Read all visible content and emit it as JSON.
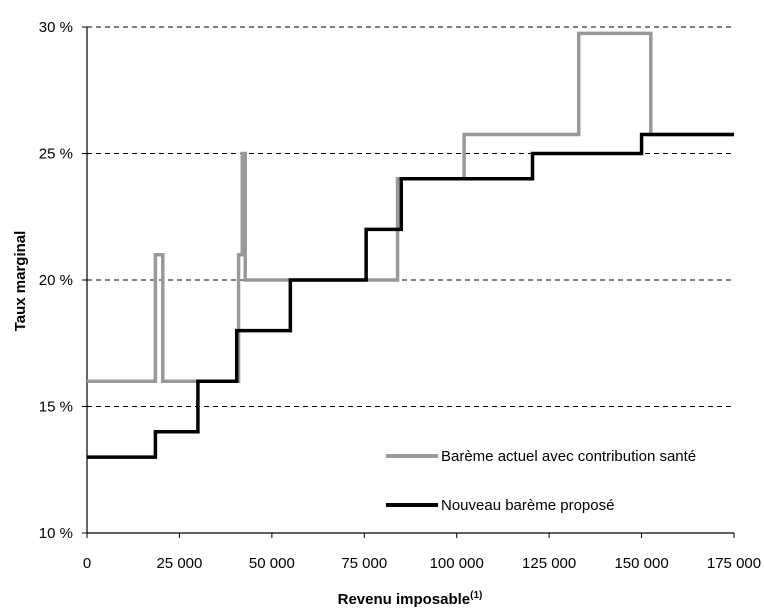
{
  "chart_data": {
    "type": "line",
    "title": "",
    "xlabel": "Revenu imposable",
    "xlabel_superscript": "(1)",
    "ylabel": "Taux marginal",
    "xlim": [
      0,
      175000
    ],
    "ylim": [
      10,
      30
    ],
    "x_ticks": [
      0,
      25000,
      50000,
      75000,
      100000,
      125000,
      150000,
      175000
    ],
    "x_tick_labels": [
      "0",
      "25 000",
      "50 000",
      "75 000",
      "100 000",
      "125 000",
      "150 000",
      "175 000"
    ],
    "y_ticks": [
      10,
      15,
      20,
      25,
      30
    ],
    "y_tick_labels": [
      "10 %",
      "15 %",
      "20 %",
      "25 %",
      "30 %"
    ],
    "grid": "horizontal-dashed",
    "legend_position": "bottom-right",
    "series": [
      {
        "name": "Barème actuel avec contribution santé",
        "color": "#999999",
        "step_points": [
          [
            0,
            16
          ],
          [
            18500,
            16
          ],
          [
            18500,
            21
          ],
          [
            20500,
            21
          ],
          [
            20500,
            16
          ],
          [
            41000,
            16
          ],
          [
            41000,
            21
          ],
          [
            42000,
            21
          ],
          [
            42000,
            25
          ],
          [
            42800,
            25
          ],
          [
            42800,
            20
          ],
          [
            84000,
            20
          ],
          [
            84000,
            24
          ],
          [
            102000,
            24
          ],
          [
            102000,
            25.75
          ],
          [
            133000,
            25.75
          ],
          [
            133000,
            29.75
          ],
          [
            152500,
            29.75
          ],
          [
            152500,
            25.75
          ],
          [
            175000,
            25.75
          ]
        ]
      },
      {
        "name": "Nouveau barème proposé",
        "color": "#000000",
        "step_points": [
          [
            0,
            13
          ],
          [
            18500,
            13
          ],
          [
            18500,
            14
          ],
          [
            30000,
            14
          ],
          [
            30000,
            16
          ],
          [
            40500,
            16
          ],
          [
            40500,
            18
          ],
          [
            55000,
            18
          ],
          [
            55000,
            20
          ],
          [
            75500,
            20
          ],
          [
            75500,
            22
          ],
          [
            85000,
            22
          ],
          [
            85000,
            24
          ],
          [
            120500,
            24
          ],
          [
            120500,
            25
          ],
          [
            150000,
            25
          ],
          [
            150000,
            25.75
          ],
          [
            175000,
            25.75
          ]
        ]
      }
    ]
  }
}
